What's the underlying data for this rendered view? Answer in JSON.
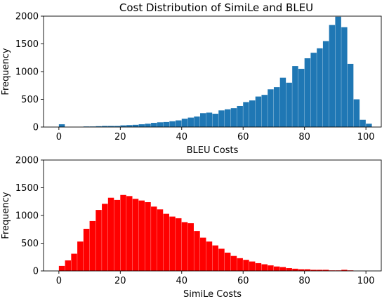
{
  "figure": {
    "title": "Cost Distribution of SimiLe and BLEU"
  },
  "chart_data": [
    {
      "type": "bar",
      "title": "Cost Distribution of SimiLe and BLEU",
      "xlabel": "BLEU Costs",
      "ylabel": "Frequency",
      "xlim": [
        -5,
        105
      ],
      "ylim": [
        0,
        2000
      ],
      "xticks": [
        0,
        20,
        40,
        60,
        80,
        100
      ],
      "yticks": [
        0,
        500,
        1000,
        1500,
        2000
      ],
      "bin_width": 2,
      "bin_starts": [
        0,
        2,
        4,
        6,
        8,
        10,
        12,
        14,
        16,
        18,
        20,
        22,
        24,
        26,
        28,
        30,
        32,
        34,
        36,
        38,
        40,
        42,
        44,
        46,
        48,
        50,
        52,
        54,
        56,
        58,
        60,
        62,
        64,
        66,
        68,
        70,
        72,
        74,
        76,
        78,
        80,
        82,
        84,
        86,
        88,
        90,
        92,
        94,
        96,
        98
      ],
      "values": [
        50,
        0,
        0,
        0,
        10,
        10,
        15,
        20,
        20,
        20,
        30,
        35,
        40,
        50,
        60,
        75,
        85,
        90,
        105,
        120,
        150,
        170,
        190,
        250,
        260,
        240,
        300,
        320,
        340,
        380,
        450,
        480,
        550,
        580,
        680,
        720,
        890,
        800,
        1100,
        1050,
        1240,
        1340,
        1420,
        1550,
        1840,
        1990,
        1800,
        1140,
        500,
        130
      ],
      "extra_bar": {
        "start": 100,
        "value": 60
      },
      "color": "#1f77b4",
      "grid": false
    },
    {
      "type": "bar",
      "title": "",
      "xlabel": "SimiLe Costs",
      "ylabel": "Frequency",
      "xlim": [
        -5,
        105
      ],
      "ylim": [
        0,
        2000
      ],
      "xticks": [
        0,
        20,
        40,
        60,
        80,
        100
      ],
      "yticks": [
        0,
        500,
        1000,
        1500,
        2000
      ],
      "bin_width": 2,
      "bin_starts": [
        0,
        2,
        4,
        6,
        8,
        10,
        12,
        14,
        16,
        18,
        20,
        22,
        24,
        26,
        28,
        30,
        32,
        34,
        36,
        38,
        40,
        42,
        44,
        46,
        48,
        50,
        52,
        54,
        56,
        58,
        60,
        62,
        64,
        66,
        68,
        70,
        72,
        74,
        76,
        78,
        80,
        82,
        84,
        86,
        88,
        90,
        92,
        94,
        96,
        98
      ],
      "values": [
        90,
        190,
        310,
        530,
        760,
        900,
        1100,
        1210,
        1320,
        1280,
        1370,
        1350,
        1300,
        1270,
        1240,
        1160,
        1110,
        1030,
        980,
        950,
        880,
        860,
        720,
        600,
        530,
        460,
        400,
        330,
        270,
        230,
        200,
        170,
        140,
        120,
        100,
        80,
        70,
        50,
        40,
        30,
        30,
        20,
        20,
        20,
        10,
        10,
        20,
        10,
        0,
        0
      ],
      "color": "#ff0000",
      "grid": false
    }
  ]
}
